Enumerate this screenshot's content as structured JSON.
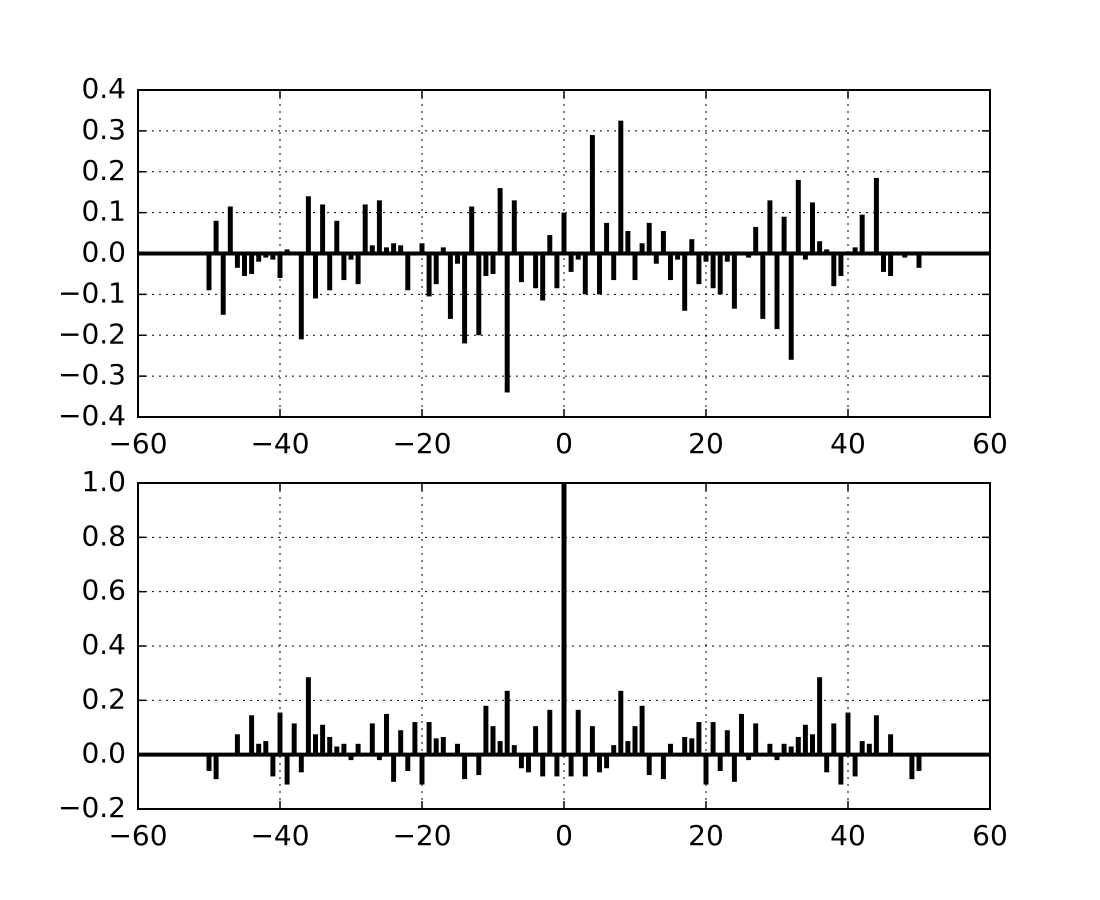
{
  "chart_data": [
    {
      "type": "bar",
      "color": "#000000",
      "grid": true,
      "x": [
        -50,
        -49,
        -48,
        -47,
        -46,
        -45,
        -44,
        -43,
        -42,
        -41,
        -40,
        -39,
        -38,
        -37,
        -36,
        -35,
        -34,
        -33,
        -32,
        -31,
        -30,
        -29,
        -28,
        -27,
        -26,
        -25,
        -24,
        -23,
        -22,
        -21,
        -20,
        -19,
        -18,
        -17,
        -16,
        -15,
        -14,
        -13,
        -12,
        -11,
        -10,
        -9,
        -8,
        -7,
        -6,
        -5,
        -4,
        -3,
        -2,
        -1,
        0,
        1,
        2,
        3,
        4,
        5,
        6,
        7,
        8,
        9,
        10,
        11,
        12,
        13,
        14,
        15,
        16,
        17,
        18,
        19,
        20,
        21,
        22,
        23,
        24,
        25,
        26,
        27,
        28,
        29,
        30,
        31,
        32,
        33,
        34,
        35,
        36,
        37,
        38,
        39,
        40,
        41,
        42,
        43,
        44,
        45,
        46,
        47,
        48,
        49,
        50
      ],
      "values": [
        -0.09,
        0.08,
        -0.15,
        0.115,
        -0.035,
        -0.055,
        -0.05,
        -0.02,
        -0.01,
        -0.015,
        -0.06,
        0.01,
        0.005,
        -0.21,
        0.14,
        -0.11,
        0.12,
        -0.09,
        0.08,
        -0.065,
        -0.015,
        -0.075,
        0.12,
        0.02,
        0.13,
        0.015,
        0.025,
        0.02,
        -0.09,
        -0.005,
        0.025,
        -0.105,
        -0.075,
        0.015,
        -0.16,
        -0.025,
        -0.22,
        0.115,
        -0.2,
        -0.055,
        -0.05,
        0.16,
        -0.34,
        0.13,
        -0.07,
        0.005,
        -0.085,
        -0.115,
        0.045,
        -0.085,
        0.1,
        -0.045,
        -0.015,
        -0.1,
        0.29,
        -0.1,
        0.075,
        -0.065,
        0.325,
        0.055,
        -0.065,
        0.025,
        0.075,
        -0.025,
        0.055,
        -0.065,
        -0.015,
        -0.14,
        0.035,
        -0.075,
        -0.02,
        -0.085,
        -0.1,
        -0.02,
        -0.135,
        0,
        -0.01,
        0.065,
        -0.16,
        0.13,
        -0.185,
        0.09,
        -0.26,
        0.18,
        -0.015,
        0.125,
        0.03,
        0.01,
        -0.08,
        -0.055,
        0.005,
        0.015,
        0.095,
        0,
        0.185,
        -0.045,
        -0.055,
        0,
        -0.01,
        0,
        -0.035
      ],
      "xlim": [
        -60,
        60
      ],
      "xticks": [
        {
          "value": -60,
          "label": "−60"
        },
        {
          "value": -40,
          "label": "−40"
        },
        {
          "value": -20,
          "label": "−20"
        },
        0,
        20,
        40,
        60
      ],
      "ylim": [
        -0.4,
        0.4
      ],
      "yticks": [
        {
          "value": -0.4,
          "label": "−0.4"
        },
        {
          "value": -0.3,
          "label": "−0.3"
        },
        {
          "value": -0.2,
          "label": "−0.2"
        },
        {
          "value": -0.1,
          "label": "−0.1"
        },
        {
          "value": 0,
          "label": "0.0"
        },
        0.1,
        0.2,
        0.3,
        0.4
      ]
    },
    {
      "type": "bar",
      "color": "#000000",
      "grid": true,
      "x": [
        -50,
        -49,
        -48,
        -47,
        -46,
        -45,
        -44,
        -43,
        -42,
        -41,
        -40,
        -39,
        -38,
        -37,
        -36,
        -35,
        -34,
        -33,
        -32,
        -31,
        -30,
        -29,
        -28,
        -27,
        -26,
        -25,
        -24,
        -23,
        -22,
        -21,
        -20,
        -19,
        -18,
        -17,
        -16,
        -15,
        -14,
        -13,
        -12,
        -11,
        -10,
        -9,
        -8,
        -7,
        -6,
        -5,
        -4,
        -3,
        -2,
        -1,
        0,
        1,
        2,
        3,
        4,
        5,
        6,
        7,
        8,
        9,
        10,
        11,
        12,
        13,
        14,
        15,
        16,
        17,
        18,
        19,
        20,
        21,
        22,
        23,
        24,
        25,
        26,
        27,
        28,
        29,
        30,
        31,
        32,
        33,
        34,
        35,
        36,
        37,
        38,
        39,
        40,
        41,
        42,
        43,
        44,
        45,
        46,
        47,
        48,
        49,
        50
      ],
      "values": [
        -0.06,
        -0.09,
        0,
        0,
        0.075,
        0,
        0.145,
        0.04,
        0.05,
        -0.08,
        0.155,
        -0.11,
        0.115,
        -0.065,
        0.285,
        0.075,
        0.11,
        0.065,
        0.03,
        0.04,
        -0.02,
        0.04,
        0,
        0.115,
        -0.02,
        0.15,
        -0.1,
        0.09,
        -0.06,
        0.12,
        -0.11,
        0.12,
        0.06,
        0.065,
        0,
        0.04,
        -0.09,
        0,
        -0.075,
        0.18,
        0.105,
        0.05,
        0.235,
        0.035,
        -0.05,
        -0.065,
        0.105,
        -0.08,
        0.165,
        -0.08,
        1.0,
        -0.08,
        0.165,
        -0.08,
        0.105,
        -0.065,
        -0.05,
        0.035,
        0.235,
        0.05,
        0.105,
        0.18,
        -0.075,
        0,
        -0.09,
        0.04,
        0,
        0.065,
        0.06,
        0.12,
        -0.11,
        0.12,
        -0.06,
        0.09,
        -0.1,
        0.15,
        -0.02,
        0.115,
        0,
        0.04,
        -0.02,
        0.04,
        0.03,
        0.065,
        0.11,
        0.075,
        0.285,
        -0.065,
        0.115,
        -0.11,
        0.155,
        -0.08,
        0.05,
        0.04,
        0.145,
        0,
        0.075,
        0,
        0,
        -0.09,
        -0.06
      ],
      "xlim": [
        -60,
        60
      ],
      "xticks": [
        {
          "value": -60,
          "label": "−60"
        },
        {
          "value": -40,
          "label": "−40"
        },
        {
          "value": -20,
          "label": "−20"
        },
        0,
        20,
        40,
        60
      ],
      "ylim": [
        -0.2,
        1.0
      ],
      "yticks": [
        {
          "value": -0.2,
          "label": "−0.2"
        },
        {
          "value": 0,
          "label": "0.0"
        },
        0.2,
        0.4,
        0.6,
        0.8,
        {
          "value": 1.0,
          "label": "1.0"
        }
      ]
    }
  ]
}
